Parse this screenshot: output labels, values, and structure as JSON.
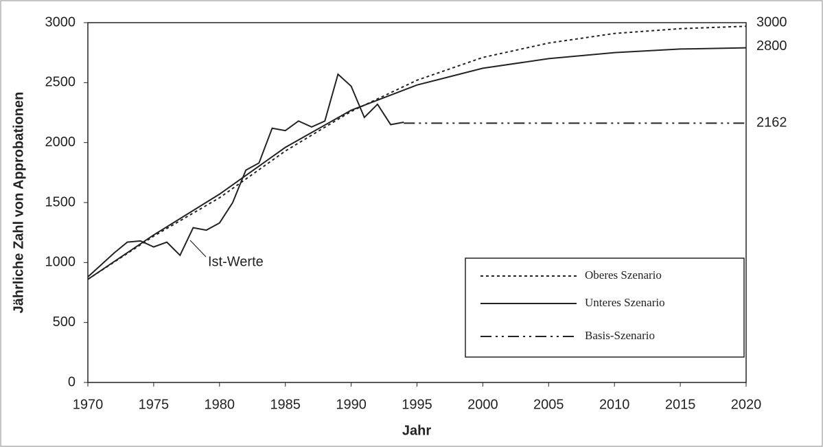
{
  "chart_data": {
    "type": "line",
    "xlabel": "Jahr",
    "ylabel": "Jährliche Zahl von Approbationen",
    "xlim": [
      1970,
      2020
    ],
    "xticks": [
      1970,
      1975,
      1980,
      1985,
      1990,
      1995,
      2000,
      2005,
      2010,
      2015,
      2020
    ],
    "ylim": [
      0,
      3000
    ],
    "yticks": [
      0,
      500,
      1000,
      1500,
      2000,
      2500,
      3000
    ],
    "grid": false,
    "legend": "lower right",
    "series": [
      {
        "name": "Ist-Werte",
        "color": "#222222",
        "style": "solid",
        "in_legend": false,
        "x": [
          1970,
          1971,
          1972,
          1973,
          1974,
          1975,
          1976,
          1977,
          1978,
          1979,
          1980,
          1981,
          1982,
          1983,
          1984,
          1985,
          1986,
          1987,
          1988,
          1989,
          1990,
          1991,
          1992,
          1993,
          1994
        ],
        "values": [
          880,
          980,
          1080,
          1170,
          1180,
          1130,
          1170,
          1060,
          1290,
          1270,
          1330,
          1500,
          1770,
          1830,
          2120,
          2100,
          2180,
          2130,
          2180,
          2570,
          2470,
          2210,
          2320,
          2150,
          2170
        ]
      },
      {
        "name": "Oberes Szenario",
        "color": "#222222",
        "style": "dotted",
        "in_legend": true,
        "x": [
          1970,
          1975,
          1980,
          1985,
          1990,
          1995,
          2000,
          2005,
          2010,
          2015,
          2020
        ],
        "values": [
          860,
          1220,
          1540,
          1930,
          2260,
          2520,
          2710,
          2830,
          2910,
          2950,
          2970
        ]
      },
      {
        "name": "Unteres Szenario",
        "color": "#222222",
        "style": "solid",
        "in_legend": true,
        "x": [
          1970,
          1975,
          1980,
          1985,
          1990,
          1995,
          2000,
          2005,
          2010,
          2015,
          2020
        ],
        "values": [
          860,
          1230,
          1570,
          1960,
          2270,
          2480,
          2620,
          2700,
          2750,
          2780,
          2790
        ]
      },
      {
        "name": "Basis-Szenario",
        "color": "#222222",
        "style": "dashdotdot",
        "in_legend": true,
        "x": [
          1994,
          2020
        ],
        "values": [
          2162,
          2162
        ]
      }
    ],
    "end_labels": [
      3000,
      2800,
      2162
    ]
  }
}
